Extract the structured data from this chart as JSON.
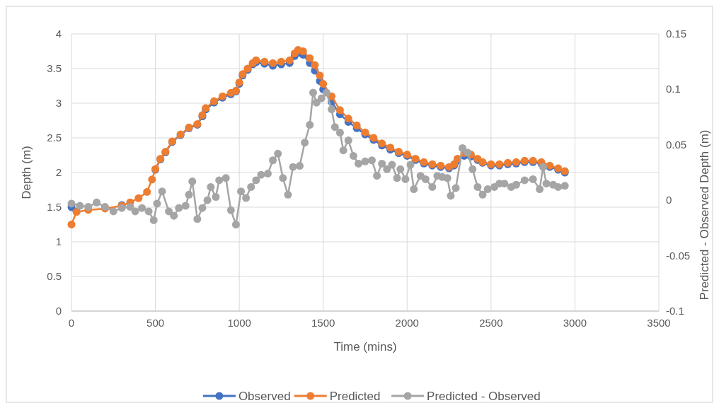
{
  "chart_data": {
    "type": "line",
    "xlabel": "Time (mins)",
    "ylabel": "Depth (m)",
    "y2label": "Predicted - Observed Depth (m)",
    "x": [
      0,
      30,
      100,
      200,
      300,
      350,
      400,
      450,
      480,
      500,
      530,
      560,
      600,
      650,
      700,
      750,
      780,
      800,
      850,
      900,
      950,
      980,
      1000,
      1020,
      1050,
      1080,
      1100,
      1150,
      1200,
      1250,
      1300,
      1330,
      1350,
      1380,
      1420,
      1450,
      1480,
      1500,
      1550,
      1600,
      1650,
      1700,
      1750,
      1800,
      1850,
      1900,
      1950,
      2000,
      2050,
      2100,
      2150,
      2200,
      2250,
      2280,
      2300,
      2340,
      2380,
      2420,
      2450,
      2500,
      2550,
      2600,
      2650,
      2700,
      2750,
      2800,
      2850,
      2900,
      2940
    ],
    "xlim": [
      0,
      3500
    ],
    "xticks": [
      0,
      500,
      1000,
      1500,
      2000,
      2500,
      3000,
      3500
    ],
    "ylim": [
      0,
      4
    ],
    "yticks": [
      0,
      0.5,
      1,
      1.5,
      2,
      2.5,
      3,
      3.5,
      4
    ],
    "y2lim": [
      -0.1,
      0.15
    ],
    "y2ticks": [
      -0.1,
      -0.05,
      0,
      0.05,
      0.1,
      0.15
    ],
    "grid": true,
    "legend": "bottom",
    "marker": "circle",
    "series": [
      {
        "name": "Observed",
        "color": "#4472c4",
        "values": [
          1.5,
          1.44,
          null,
          null,
          1.53,
          null,
          null,
          null,
          null,
          2.04,
          2.19,
          2.29,
          2.44,
          2.54,
          2.64,
          2.69,
          2.81,
          2.91,
          3.01,
          3.08,
          3.13,
          3.17,
          3.28,
          3.4,
          3.48,
          3.56,
          3.59,
          3.57,
          3.54,
          3.56,
          3.58,
          3.68,
          3.73,
          3.7,
          3.58,
          3.47,
          3.32,
          3.2,
          3.02,
          2.84,
          2.73,
          2.64,
          2.55,
          2.47,
          2.39,
          2.33,
          2.28,
          2.24,
          2.18,
          2.13,
          2.1,
          2.08,
          2.06,
          2.1,
          2.17,
          2.24,
          2.23,
          2.18,
          2.14,
          2.1,
          2.1,
          2.12,
          2.13,
          2.15,
          2.15,
          2.13,
          2.08,
          2.04,
          2.0
        ]
      },
      {
        "name": "Predicted",
        "color": "#ed7d31",
        "values": [
          1.25,
          1.43,
          1.46,
          1.48,
          1.52,
          1.57,
          1.63,
          1.72,
          1.9,
          2.05,
          2.2,
          2.3,
          2.45,
          2.55,
          2.65,
          2.7,
          2.83,
          2.93,
          3.03,
          3.1,
          3.15,
          3.18,
          3.3,
          3.42,
          3.5,
          3.58,
          3.62,
          3.6,
          3.58,
          3.6,
          3.62,
          3.72,
          3.77,
          3.75,
          3.65,
          3.55,
          3.4,
          3.28,
          3.1,
          2.9,
          2.78,
          2.68,
          2.58,
          2.5,
          2.42,
          2.36,
          2.3,
          2.26,
          2.2,
          2.15,
          2.12,
          2.1,
          2.08,
          2.12,
          2.2,
          2.28,
          2.26,
          2.2,
          2.15,
          2.12,
          2.12,
          2.14,
          2.15,
          2.17,
          2.17,
          2.15,
          2.1,
          2.06,
          2.02
        ]
      },
      {
        "name": "Predicted - Observed",
        "color": "#a5a5a5",
        "axis": "y2",
        "x": [
          0,
          50,
          100,
          150,
          200,
          250,
          300,
          350,
          380,
          420,
          460,
          490,
          510,
          540,
          580,
          610,
          640,
          680,
          700,
          720,
          750,
          780,
          810,
          830,
          860,
          880,
          920,
          950,
          980,
          1010,
          1040,
          1070,
          1100,
          1130,
          1170,
          1200,
          1230,
          1260,
          1290,
          1320,
          1360,
          1390,
          1420,
          1440,
          1460,
          1490,
          1520,
          1550,
          1570,
          1600,
          1620,
          1650,
          1680,
          1710,
          1750,
          1790,
          1820,
          1850,
          1880,
          1910,
          1940,
          1960,
          1990,
          2020,
          2040,
          2080,
          2110,
          2150,
          2180,
          2210,
          2240,
          2260,
          2290,
          2330,
          2360,
          2390,
          2420,
          2450,
          2480,
          2520,
          2550,
          2580,
          2620,
          2650,
          2700,
          2750,
          2790,
          2810,
          2830,
          2870,
          2900,
          2940
        ],
        "values": [
          -0.003,
          -0.005,
          -0.006,
          -0.002,
          -0.006,
          -0.01,
          -0.007,
          -0.006,
          -0.01,
          -0.007,
          -0.01,
          -0.018,
          -0.003,
          0.008,
          -0.01,
          -0.014,
          -0.007,
          -0.005,
          0.005,
          0.017,
          -0.017,
          -0.007,
          0,
          0.012,
          0.003,
          0.018,
          0.02,
          -0.009,
          -0.022,
          0.008,
          0.002,
          0.012,
          0.018,
          0.023,
          0.024,
          0.036,
          0.042,
          0.02,
          0.005,
          0.03,
          0.031,
          0.052,
          0.068,
          0.097,
          0.088,
          0.092,
          0.097,
          0.082,
          0.066,
          0.061,
          0.045,
          0.054,
          0.04,
          0.033,
          0.035,
          0.036,
          0.022,
          0.033,
          0.028,
          0.032,
          0.02,
          0.028,
          0.019,
          0.032,
          0.01,
          0.022,
          0.019,
          0.012,
          0.022,
          0.021,
          0.02,
          0.004,
          0.011,
          0.047,
          0.043,
          0.028,
          0.012,
          0.005,
          0.01,
          0.012,
          0.015,
          0.015,
          0.012,
          0.014,
          0.018,
          0.019,
          0.01,
          0.03,
          0.015,
          0.014,
          0.012,
          0.013
        ]
      }
    ]
  }
}
